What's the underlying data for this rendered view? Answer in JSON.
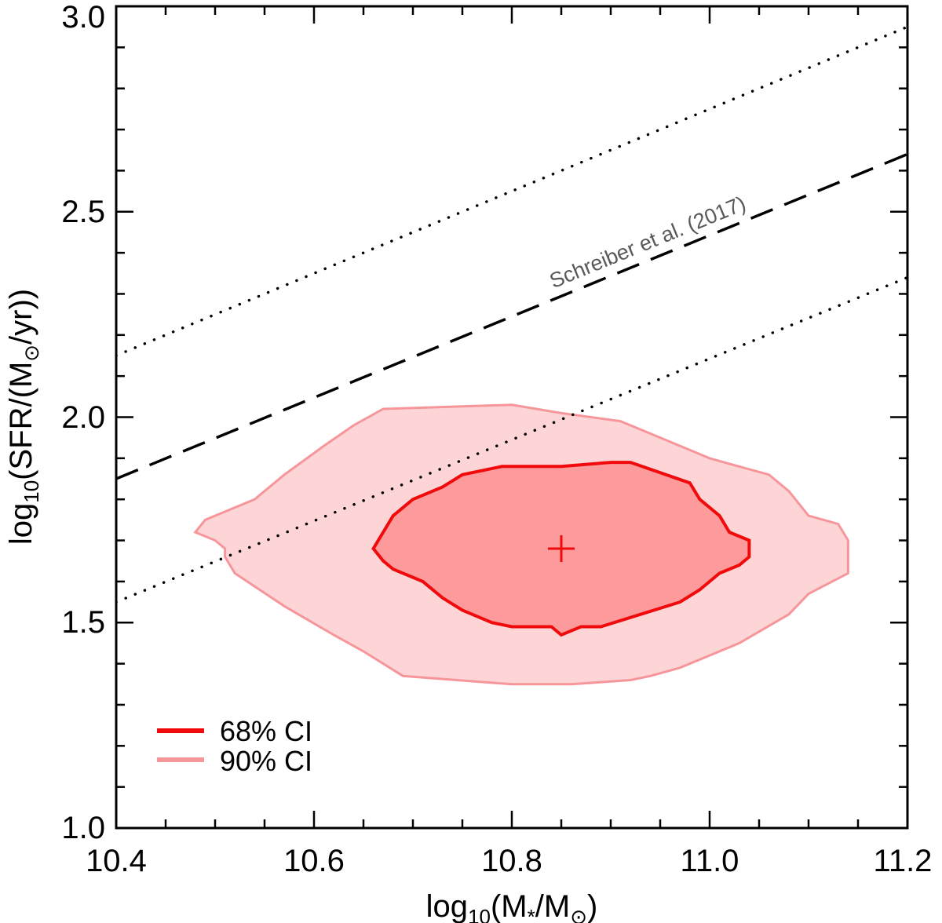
{
  "chart_data": {
    "type": "contour",
    "xlabel": {
      "prefix": "log",
      "sub": "10",
      "body": "(M",
      "sub2": "*",
      "mid": "/M",
      "sub3": "⊙",
      "end": ")"
    },
    "ylabel": {
      "prefix": "log",
      "sub": "10",
      "body": "(SFR/(M",
      "sub2": "⊙",
      "end": "/yr))"
    },
    "xlim": [
      10.4,
      11.2
    ],
    "ylim": [
      1.0,
      3.0
    ],
    "x_ticks": [
      10.4,
      10.6,
      10.8,
      11.0,
      11.2
    ],
    "x_tick_labels": [
      "10.4",
      "10.6",
      "10.8",
      "11.0",
      "11.2"
    ],
    "y_ticks": [
      1.0,
      1.5,
      2.0,
      2.5,
      3.0
    ],
    "y_tick_labels": [
      "1.0",
      "1.5",
      "2.0",
      "2.5",
      "3.0"
    ],
    "main_sequence": {
      "label": "Schreiber et al. (2017)",
      "x": [
        10.4,
        11.2
      ],
      "y": [
        1.85,
        2.64
      ],
      "upper_y": [
        2.15,
        2.95
      ],
      "lower_y": [
        1.55,
        2.34
      ]
    },
    "best_fit": {
      "x": 10.85,
      "y": 1.68
    },
    "contours": [
      {
        "name": "90% CI",
        "fill": "#fdd5d7",
        "stroke": "#f7969a",
        "x": [
          10.48,
          10.5,
          10.51,
          10.51,
          10.52,
          10.57,
          10.62,
          10.65,
          10.67,
          10.69,
          10.8,
          10.86,
          10.92,
          10.94,
          10.97,
          11.0,
          11.03,
          11.08,
          11.1,
          11.14,
          11.14,
          11.13,
          11.1,
          11.08,
          11.06,
          11.0,
          10.97,
          10.94,
          10.91,
          10.85,
          10.8,
          10.67,
          10.64,
          10.61,
          10.57,
          10.54,
          10.49
        ],
        "y": [
          1.72,
          1.7,
          1.68,
          1.66,
          1.62,
          1.54,
          1.47,
          1.43,
          1.4,
          1.37,
          1.35,
          1.35,
          1.36,
          1.37,
          1.39,
          1.42,
          1.45,
          1.52,
          1.57,
          1.62,
          1.7,
          1.74,
          1.76,
          1.82,
          1.86,
          1.9,
          1.93,
          1.96,
          1.99,
          2.01,
          2.03,
          2.02,
          1.98,
          1.93,
          1.86,
          1.8,
          1.75
        ]
      },
      {
        "name": "68% CI",
        "fill": "#fd9a9c",
        "stroke": "#f00a0b",
        "x": [
          10.66,
          10.67,
          10.68,
          10.71,
          10.73,
          10.75,
          10.78,
          10.8,
          10.84,
          10.85,
          10.87,
          10.89,
          10.93,
          10.97,
          10.99,
          11.01,
          11.03,
          11.04,
          11.04,
          11.02,
          11.01,
          10.99,
          10.98,
          10.92,
          10.9,
          10.85,
          10.79,
          10.75,
          10.73,
          10.7,
          10.68
        ],
        "y": [
          1.68,
          1.65,
          1.63,
          1.6,
          1.56,
          1.53,
          1.5,
          1.49,
          1.49,
          1.47,
          1.49,
          1.49,
          1.52,
          1.55,
          1.58,
          1.62,
          1.64,
          1.66,
          1.7,
          1.72,
          1.76,
          1.8,
          1.84,
          1.89,
          1.89,
          1.88,
          1.88,
          1.86,
          1.83,
          1.8,
          1.76
        ]
      }
    ],
    "legend": [
      {
        "label": "68% CI",
        "color": "#f00a0b"
      },
      {
        "label": "90% CI",
        "color": "#f7969a"
      }
    ],
    "annotation_color": "#595959"
  }
}
